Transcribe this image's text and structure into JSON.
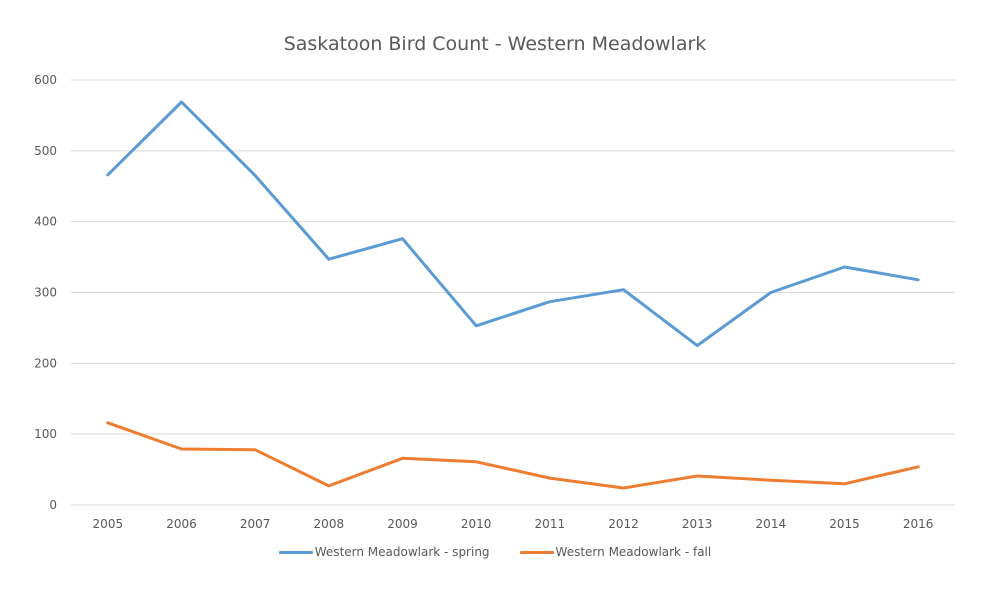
{
  "chart_data": {
    "type": "line",
    "title": "Saskatoon Bird Count - Western Meadowlark",
    "xlabel": "",
    "ylabel": "",
    "categories": [
      "2005",
      "2006",
      "2007",
      "2008",
      "2009",
      "2010",
      "2011",
      "2012",
      "2013",
      "2014",
      "2015",
      "2016"
    ],
    "series": [
      {
        "name": "Western Meadowlark - spring",
        "color": "#5b9bd5",
        "values": [
          466,
          569,
          465,
          347,
          376,
          253,
          287,
          304,
          225,
          300,
          336,
          318
        ]
      },
      {
        "name": "Western Meadowlark - fall",
        "color": "#ed7d31",
        "values": [
          116,
          79,
          78,
          27,
          66,
          61,
          38,
          24,
          41,
          35,
          30,
          54
        ]
      }
    ],
    "ylim": [
      0,
      600
    ],
    "yticks": [
      "0",
      "100",
      "200",
      "300",
      "400",
      "500",
      "600"
    ],
    "grid": true,
    "legend_position": "bottom"
  },
  "legend": {
    "items": [
      {
        "label": "Western Meadowlark - spring",
        "color": "#5b9bd5"
      },
      {
        "label": "Western Meadowlark - fall",
        "color": "#ed7d31"
      }
    ]
  }
}
